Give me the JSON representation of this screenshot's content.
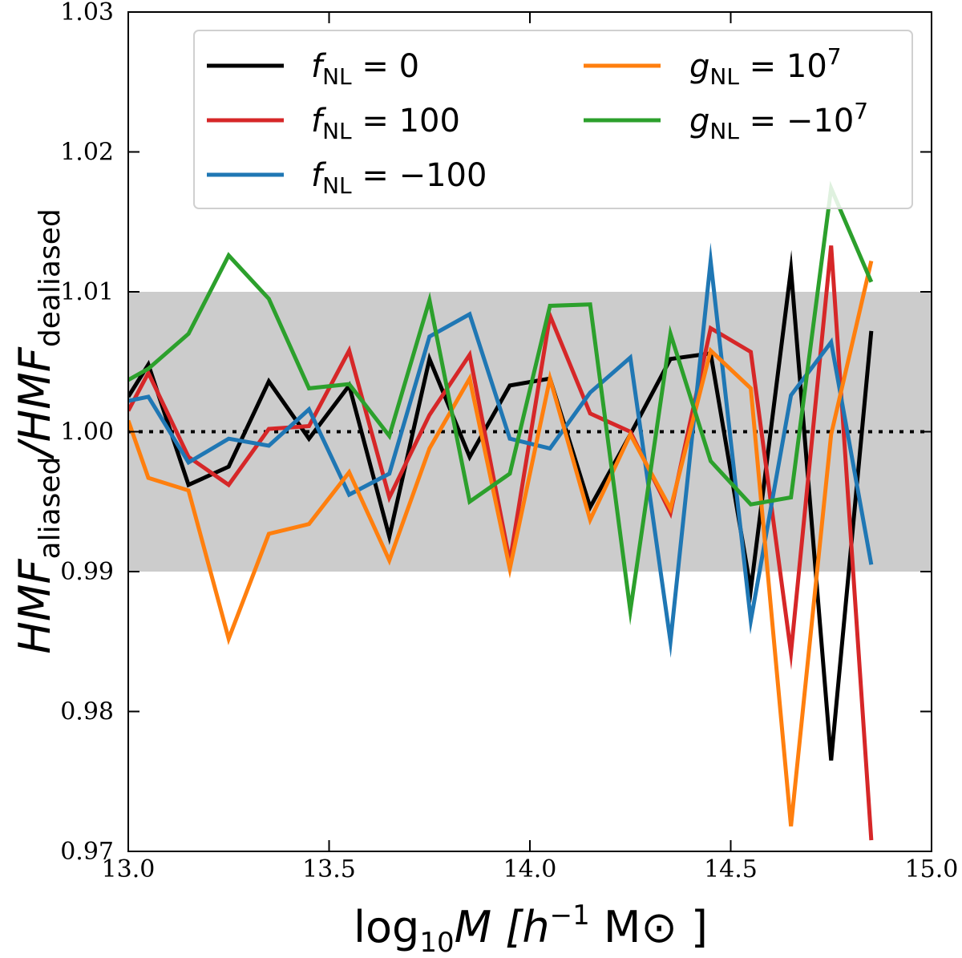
{
  "chart_data": {
    "type": "line",
    "title": "",
    "xlabel": {
      "main": "log",
      "sub": "10",
      "rest": "M [h",
      "sup": "−1",
      "end": " M⊙ ]"
    },
    "ylabel": {
      "a": "HMF",
      "a_sub": "aliased",
      "b": "/HMF",
      "b_sub": "dealiased"
    },
    "xlim": [
      13.0,
      15.0
    ],
    "ylim": [
      0.97,
      1.03
    ],
    "xticks": [
      "13.0",
      "13.5",
      "14.0",
      "14.5",
      "15.0"
    ],
    "yticks": [
      "0.97",
      "0.98",
      "0.99",
      "1.00",
      "1.01",
      "1.02",
      "1.03"
    ],
    "shaded_band": [
      0.99,
      1.01
    ],
    "reference_line": 1.0,
    "x": [
      13.0,
      13.05,
      13.15,
      13.25,
      13.35,
      13.45,
      13.55,
      13.65,
      13.75,
      13.85,
      13.95,
      14.05,
      14.15,
      14.25,
      14.35,
      14.45,
      14.55,
      14.65,
      14.75,
      14.85
    ],
    "series": [
      {
        "name": "fNL = 0",
        "label_main": "f",
        "label_sub": "NL",
        "label_rest": " = 0",
        "label_sup": "",
        "color": "#000000",
        "values": [
          1.0025,
          1.0048,
          0.9962,
          0.9975,
          1.0036,
          0.9995,
          1.0033,
          0.9925,
          1.0052,
          0.9982,
          1.0033,
          1.0038,
          0.9946,
          0.9998,
          1.0052,
          1.0056,
          0.9887,
          1.0116,
          0.9765,
          1.0072
        ]
      },
      {
        "name": "fNL = 100",
        "label_main": "f",
        "label_sub": "NL",
        "label_rest": " = 100",
        "label_sup": "",
        "color": "#d62728",
        "values": [
          1.0015,
          1.0042,
          0.9982,
          0.9962,
          1.0002,
          1.0004,
          1.0058,
          0.9953,
          1.0012,
          1.0055,
          0.9907,
          1.0083,
          1.0013,
          1.0,
          0.9942,
          1.0074,
          1.0057,
          0.9842,
          1.0133,
          0.9708
        ]
      },
      {
        "name": "fNL = -100",
        "label_main": "f",
        "label_sub": "NL",
        "label_rest": " = −100",
        "label_sup": "",
        "color": "#1f77b4",
        "values": [
          1.0022,
          1.0025,
          0.9978,
          0.9995,
          0.999,
          1.0016,
          0.9955,
          0.997,
          1.0068,
          1.0084,
          0.9995,
          0.9988,
          1.0028,
          1.0053,
          0.985,
          1.0122,
          0.9865,
          1.0026,
          1.0064,
          0.9905
        ]
      },
      {
        "name": "gNL = 10^7",
        "label_main": "g",
        "label_sub": "NL",
        "label_rest": " = 10",
        "label_sup": "7",
        "color": "#ff7f0e",
        "values": [
          1.0008,
          0.9967,
          0.9958,
          0.9852,
          0.9927,
          0.9934,
          0.9971,
          0.9908,
          0.9988,
          1.0038,
          0.9902,
          1.0038,
          0.9937,
          0.9998,
          0.9945,
          1.0058,
          1.0031,
          0.9718,
          0.9998,
          1.0122
        ]
      },
      {
        "name": "gNL = -10^7",
        "label_main": "g",
        "label_sub": "NL",
        "label_rest": " = −10",
        "label_sup": "7",
        "color": "#2ca02c",
        "values": [
          1.0037,
          1.0045,
          1.007,
          1.0126,
          1.0095,
          1.0031,
          1.0034,
          0.9997,
          1.0094,
          0.995,
          0.997,
          1.009,
          1.0091,
          0.9872,
          1.007,
          0.9979,
          0.9948,
          0.9953,
          1.0174,
          1.0107
        ]
      }
    ],
    "legend": {
      "placement": "top-right",
      "columns": 2
    }
  }
}
